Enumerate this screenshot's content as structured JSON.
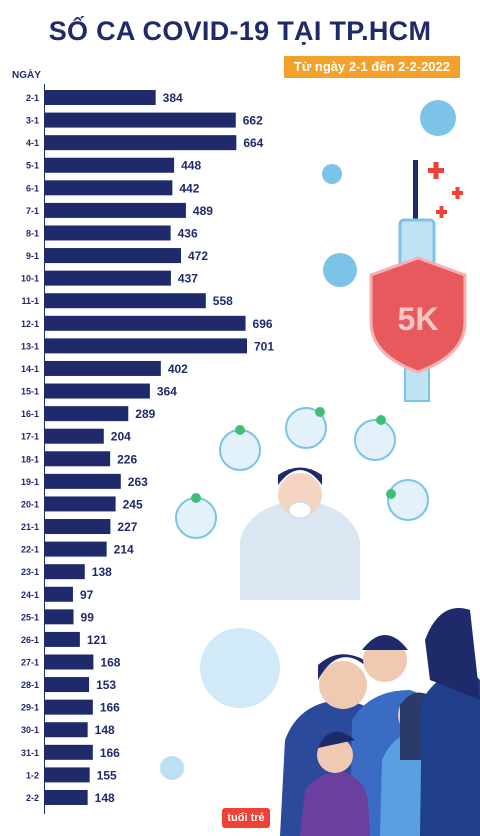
{
  "header": {
    "title": "SỐ CA COVID-19 TẠI TP.HCM",
    "subtitle": "Từ ngày 2-1 đến 2-2-2022"
  },
  "brand": {
    "logo_text": "tuổi trẻ"
  },
  "colors": {
    "bar": "#1f2a6b",
    "accent": "#f4a12b",
    "brand": "#ef4136"
  },
  "chart_data": {
    "type": "bar",
    "orientation": "horizontal",
    "ylabel": "NGÀY",
    "categories": [
      "2-1",
      "3-1",
      "4-1",
      "5-1",
      "6-1",
      "7-1",
      "8-1",
      "9-1",
      "10-1",
      "11-1",
      "12-1",
      "13-1",
      "14-1",
      "15-1",
      "16-1",
      "17-1",
      "18-1",
      "19-1",
      "20-1",
      "21-1",
      "22-1",
      "23-1",
      "24-1",
      "25-1",
      "26-1",
      "27-1",
      "28-1",
      "29-1",
      "30-1",
      "31-1",
      "1-2",
      "2-2"
    ],
    "values": [
      384,
      662,
      664,
      448,
      442,
      489,
      436,
      472,
      437,
      558,
      696,
      701,
      402,
      364,
      289,
      204,
      226,
      263,
      245,
      227,
      214,
      138,
      97,
      99,
      121,
      168,
      153,
      166,
      148,
      166,
      155,
      148
    ],
    "xlim": [
      0,
      701
    ],
    "grid": false,
    "legend": "none"
  }
}
